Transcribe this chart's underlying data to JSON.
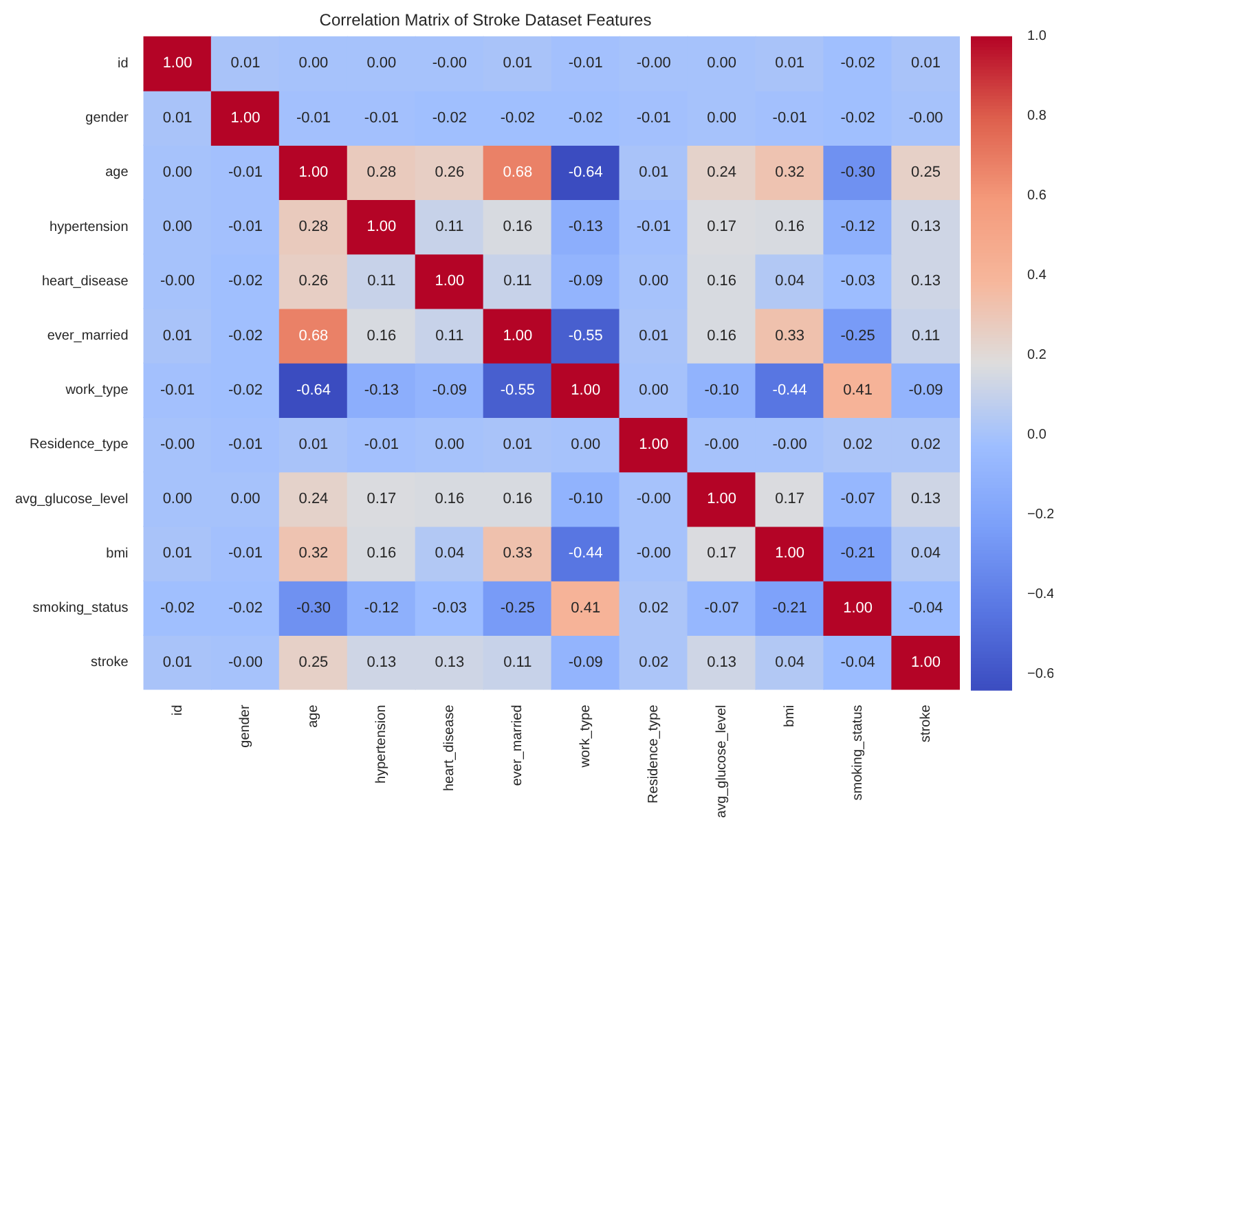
{
  "chart_data": {
    "type": "heatmap",
    "title": "Correlation Matrix of Stroke Dataset Features",
    "categories": [
      "id",
      "gender",
      "age",
      "hypertension",
      "heart_disease",
      "ever_married",
      "work_type",
      "Residence_type",
      "avg_glucose_level",
      "bmi",
      "smoking_status",
      "stroke"
    ],
    "y_categories": [
      "id",
      "gender",
      "age",
      "hypertension",
      "heart_disease",
      "ever_married",
      "work_type",
      "Residence_type",
      "avg_glucose_level",
      "bmi",
      "smoking_status",
      "stroke"
    ],
    "cells": [
      [
        1.0,
        0.01,
        0.0,
        0.0,
        0.0,
        0.01,
        -0.01,
        0.0,
        0.0,
        0.01,
        -0.02,
        0.01
      ],
      [
        0.01,
        1.0,
        -0.01,
        -0.01,
        -0.02,
        -0.02,
        -0.02,
        -0.01,
        0.0,
        -0.01,
        -0.02,
        0.0
      ],
      [
        0.0,
        -0.01,
        1.0,
        0.28,
        0.26,
        0.68,
        -0.64,
        0.01,
        0.24,
        0.32,
        -0.3,
        0.25
      ],
      [
        0.0,
        -0.01,
        0.28,
        1.0,
        0.11,
        0.16,
        -0.13,
        -0.01,
        0.17,
        0.16,
        -0.12,
        0.13
      ],
      [
        0.0,
        -0.02,
        0.26,
        0.11,
        1.0,
        0.11,
        -0.09,
        0.0,
        0.16,
        0.04,
        -0.03,
        0.13
      ],
      [
        0.01,
        -0.02,
        0.68,
        0.16,
        0.11,
        1.0,
        -0.55,
        0.01,
        0.16,
        0.33,
        -0.25,
        0.11
      ],
      [
        -0.01,
        -0.02,
        -0.64,
        -0.13,
        -0.09,
        -0.55,
        1.0,
        0.0,
        -0.1,
        -0.44,
        0.41,
        -0.09
      ],
      [
        0.0,
        -0.01,
        0.01,
        -0.01,
        0.0,
        0.01,
        0.0,
        1.0,
        0.0,
        0.0,
        0.02,
        0.02
      ],
      [
        0.0,
        0.0,
        0.24,
        0.17,
        0.16,
        0.16,
        -0.1,
        0.0,
        1.0,
        0.17,
        -0.07,
        0.13
      ],
      [
        0.01,
        -0.01,
        0.32,
        0.16,
        0.04,
        0.33,
        -0.44,
        0.0,
        0.17,
        1.0,
        -0.21,
        0.04
      ],
      [
        -0.02,
        -0.02,
        -0.3,
        -0.12,
        -0.03,
        -0.25,
        0.41,
        0.02,
        -0.07,
        -0.21,
        1.0,
        -0.04
      ],
      [
        0.01,
        0.0,
        0.25,
        0.13,
        0.13,
        0.11,
        -0.09,
        0.02,
        0.13,
        0.04,
        -0.04,
        1.0
      ]
    ],
    "cell_labels": [
      [
        "1.00",
        "0.01",
        "0.00",
        "0.00",
        "-0.00",
        "0.01",
        "-0.01",
        "-0.00",
        "0.00",
        "0.01",
        "-0.02",
        "0.01"
      ],
      [
        "0.01",
        "1.00",
        "-0.01",
        "-0.01",
        "-0.02",
        "-0.02",
        "-0.02",
        "-0.01",
        "0.00",
        "-0.01",
        "-0.02",
        "-0.00"
      ],
      [
        "0.00",
        "-0.01",
        "1.00",
        "0.28",
        "0.26",
        "0.68",
        "-0.64",
        "0.01",
        "0.24",
        "0.32",
        "-0.30",
        "0.25"
      ],
      [
        "0.00",
        "-0.01",
        "0.28",
        "1.00",
        "0.11",
        "0.16",
        "-0.13",
        "-0.01",
        "0.17",
        "0.16",
        "-0.12",
        "0.13"
      ],
      [
        "-0.00",
        "-0.02",
        "0.26",
        "0.11",
        "1.00",
        "0.11",
        "-0.09",
        "0.00",
        "0.16",
        "0.04",
        "-0.03",
        "0.13"
      ],
      [
        "0.01",
        "-0.02",
        "0.68",
        "0.16",
        "0.11",
        "1.00",
        "-0.55",
        "0.01",
        "0.16",
        "0.33",
        "-0.25",
        "0.11"
      ],
      [
        "-0.01",
        "-0.02",
        "-0.64",
        "-0.13",
        "-0.09",
        "-0.55",
        "1.00",
        "0.00",
        "-0.10",
        "-0.44",
        "0.41",
        "-0.09"
      ],
      [
        "-0.00",
        "-0.01",
        "0.01",
        "-0.01",
        "0.00",
        "0.01",
        "0.00",
        "1.00",
        "-0.00",
        "-0.00",
        "0.02",
        "0.02"
      ],
      [
        "0.00",
        "0.00",
        "0.24",
        "0.17",
        "0.16",
        "0.16",
        "-0.10",
        "-0.00",
        "1.00",
        "0.17",
        "-0.07",
        "0.13"
      ],
      [
        "0.01",
        "-0.01",
        "0.32",
        "0.16",
        "0.04",
        "0.33",
        "-0.44",
        "-0.00",
        "0.17",
        "1.00",
        "-0.21",
        "0.04"
      ],
      [
        "-0.02",
        "-0.02",
        "-0.30",
        "-0.12",
        "-0.03",
        "-0.25",
        "0.41",
        "0.02",
        "-0.07",
        "-0.21",
        "1.00",
        "-0.04"
      ],
      [
        "0.01",
        "-0.00",
        "0.25",
        "0.13",
        "0.13",
        "0.11",
        "-0.09",
        "0.02",
        "0.13",
        "0.04",
        "-0.04",
        "1.00"
      ]
    ],
    "clim": [
      -0.64,
      1.0
    ],
    "cticks": [
      {
        "value": -0.6,
        "label": "−0.6"
      },
      {
        "value": -0.4,
        "label": "−0.4"
      },
      {
        "value": -0.2,
        "label": "−0.2"
      },
      {
        "value": 0,
        "label": "0.0"
      },
      {
        "value": 0.2,
        "label": "0.2"
      },
      {
        "value": 0.4,
        "label": "0.4"
      },
      {
        "value": 0.6,
        "label": "0.6"
      },
      {
        "value": 0.8,
        "label": "0.8"
      },
      {
        "value": 1.0,
        "label": "1.0"
      }
    ]
  }
}
